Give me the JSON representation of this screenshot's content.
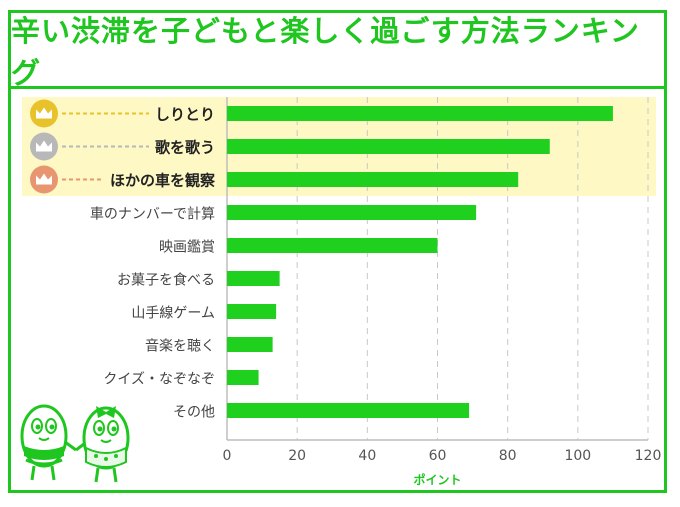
{
  "title": "辛い渋滞を子どもと楽しく過ごす方法ランキング",
  "colors": {
    "accent": "#1fc61f",
    "bar": "#1fd01f",
    "highlight": "#fdf8c4",
    "crown_gold": "#e8c22a",
    "crown_silver": "#b8b8b8",
    "crown_bronze": "#e89670"
  },
  "chart_data": {
    "type": "bar",
    "orientation": "horizontal",
    "categories": [
      "しりとり",
      "歌を歌う",
      "ほかの車を観察",
      "車のナンバーで計算",
      "映画鑑賞",
      "お菓子を食べる",
      "山手線ゲーム",
      "音楽を聴く",
      "クイズ・なぞなぞ",
      "その他"
    ],
    "values": [
      110,
      92,
      83,
      71,
      60,
      15,
      14,
      13,
      9,
      69
    ],
    "xlabel": "ポイント",
    "xlim": [
      0,
      120
    ],
    "xticks": [
      "0",
      "20",
      "40",
      "60",
      "80",
      "100",
      "120"
    ],
    "grid": "vertical-dashed",
    "top_ranked": 3,
    "crowns": [
      "gold-crown-icon",
      "silver-crown-icon",
      "bronze-crown-icon"
    ]
  }
}
